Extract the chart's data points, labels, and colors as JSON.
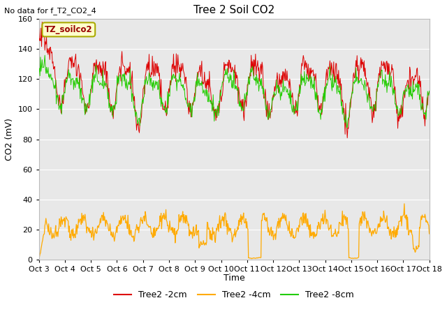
{
  "title": "Tree 2 Soil CO2",
  "top_left_text": "No data for f_T2_CO2_4",
  "legend_box_label": "TZ_soilco2",
  "ylabel": "CO2 (mV)",
  "xlabel": "Time",
  "ylim": [
    0,
    160
  ],
  "yticks": [
    0,
    20,
    40,
    60,
    80,
    100,
    120,
    140,
    160
  ],
  "x_tick_labels": [
    "Oct 3",
    "Oct 4",
    "Oct 5",
    "Oct 6",
    "Oct 7",
    "Oct 8",
    "Oct 9",
    "Oct 10",
    "Oct 11",
    "Oct 12",
    "Oct 13",
    "Oct 14",
    "Oct 15",
    "Oct 16",
    "Oct 17",
    "Oct 18"
  ],
  "line_colors": [
    "#dd0000",
    "#ffaa00",
    "#22cc00"
  ],
  "line_labels": [
    "Tree2 -2cm",
    "Tree2 -4cm",
    "Tree2 -8cm"
  ],
  "plot_bg_color": "#e8e8e8",
  "fig_bg_color": "#ffffff",
  "legend_box_fill": "#ffffcc",
  "legend_box_edge": "#aaaa00",
  "legend_text_color": "#990000"
}
